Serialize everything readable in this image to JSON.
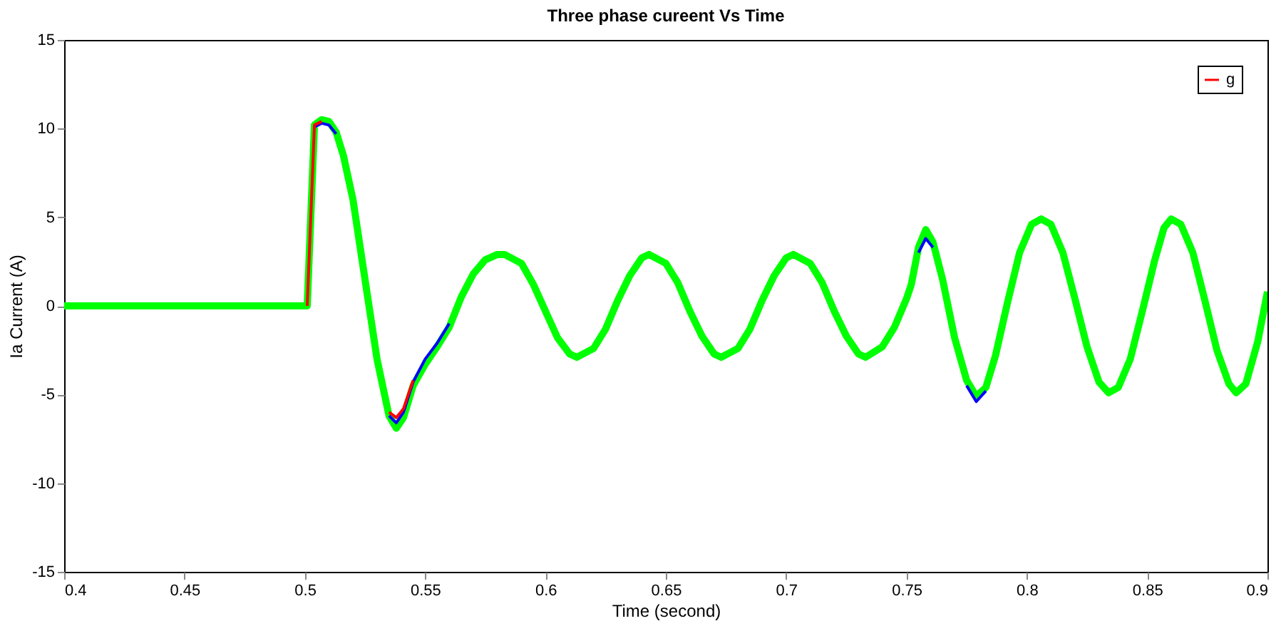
{
  "chart_data": {
    "type": "line",
    "title": "Three phase cureent Vs Time",
    "xlabel": "Time (second)",
    "ylabel": "Ia Current (A)",
    "x": [
      0.4,
      0.5,
      0.501,
      0.504,
      0.507,
      0.51,
      0.513,
      0.516,
      0.52,
      0.525,
      0.53,
      0.535,
      0.538,
      0.541,
      0.545,
      0.55,
      0.555,
      0.56,
      0.565,
      0.57,
      0.575,
      0.58,
      0.583,
      0.59,
      0.595,
      0.6,
      0.605,
      0.61,
      0.613,
      0.62,
      0.625,
      0.63,
      0.635,
      0.64,
      0.643,
      0.65,
      0.655,
      0.66,
      0.665,
      0.67,
      0.673,
      0.68,
      0.685,
      0.69,
      0.695,
      0.7,
      0.703,
      0.71,
      0.715,
      0.72,
      0.725,
      0.73,
      0.733,
      0.74,
      0.745,
      0.75,
      0.752,
      0.755,
      0.758,
      0.761,
      0.765,
      0.77,
      0.775,
      0.779,
      0.783,
      0.787,
      0.792,
      0.797,
      0.802,
      0.806,
      0.81,
      0.815,
      0.82,
      0.825,
      0.83,
      0.834,
      0.838,
      0.843,
      0.848,
      0.853,
      0.857,
      0.86,
      0.864,
      0.869,
      0.874,
      0.879,
      0.884,
      0.887,
      0.891,
      0.896,
      0.9
    ],
    "series": [
      {
        "name": "g",
        "color": "#ff0000",
        "values": [
          null,
          null,
          0,
          10.2,
          10.4,
          null,
          null,
          null,
          null,
          null,
          null,
          -6.0,
          -6.3,
          -5.8,
          -4.2,
          null,
          null,
          null,
          null,
          null,
          null,
          null,
          null,
          null,
          null,
          null,
          null,
          null,
          null,
          null,
          null,
          null,
          null,
          null,
          null,
          null,
          null,
          null,
          null,
          null,
          null,
          null,
          null,
          null,
          null,
          null,
          null,
          null,
          null,
          null,
          null,
          null,
          null,
          null,
          null,
          null,
          null,
          null,
          null,
          null,
          null,
          null,
          null,
          null,
          null,
          null,
          null,
          null,
          null,
          null,
          null,
          null,
          null,
          null,
          null,
          null,
          null,
          null,
          null,
          null,
          null,
          null,
          null,
          null,
          null,
          null,
          null,
          null,
          null,
          null,
          null
        ]
      },
      {
        "color": "#0000ff",
        "values": [
          null,
          null,
          null,
          10.1,
          10.3,
          10.2,
          9.7,
          null,
          null,
          null,
          null,
          -6.2,
          -6.6,
          -6.0,
          -4.3,
          -3.0,
          -2.1,
          -1.0,
          null,
          null,
          null,
          null,
          null,
          null,
          null,
          null,
          null,
          null,
          null,
          null,
          null,
          null,
          null,
          null,
          null,
          null,
          null,
          null,
          null,
          null,
          null,
          null,
          null,
          null,
          null,
          null,
          null,
          null,
          null,
          null,
          null,
          null,
          null,
          null,
          null,
          null,
          null,
          3.0,
          3.8,
          3.3,
          null,
          null,
          -4.5,
          -5.4,
          -4.8,
          null,
          null,
          null,
          null,
          null,
          null,
          null,
          null,
          null,
          null,
          null,
          null,
          null,
          null,
          null,
          null,
          null,
          null,
          null,
          null,
          null,
          null,
          null,
          null,
          null,
          null
        ]
      },
      {
        "color": "#00ff00",
        "values": [
          0,
          0,
          0,
          10.2,
          10.5,
          10.4,
          9.8,
          8.5,
          6,
          1.5,
          -3,
          -6.2,
          -6.9,
          -6.3,
          -4.5,
          -3.3,
          -2.3,
          -1.2,
          0.5,
          1.8,
          2.6,
          2.9,
          2.9,
          2.4,
          1.2,
          -0.3,
          -1.8,
          -2.7,
          -2.9,
          -2.4,
          -1.3,
          0.3,
          1.7,
          2.7,
          2.9,
          2.4,
          1.3,
          -0.3,
          -1.7,
          -2.7,
          -2.9,
          -2.4,
          -1.3,
          0.3,
          1.7,
          2.7,
          2.9,
          2.4,
          1.3,
          -0.3,
          -1.7,
          -2.7,
          -2.9,
          -2.3,
          -1.2,
          0.4,
          1.2,
          3.3,
          4.3,
          3.6,
          1.5,
          -1.8,
          -4.2,
          -5.1,
          -4.6,
          -2.8,
          0.2,
          3,
          4.6,
          4.9,
          4.6,
          3,
          0.4,
          -2.3,
          -4.3,
          -4.9,
          -4.6,
          -3,
          -0.3,
          2.5,
          4.4,
          4.9,
          4.6,
          3,
          0.3,
          -2.5,
          -4.4,
          -4.9,
          -4.4,
          -2,
          0.8
        ]
      }
    ],
    "xlim": [
      0.4,
      0.9
    ],
    "xticks": [
      0.4,
      0.45,
      0.5,
      0.55,
      0.6,
      0.65,
      0.7,
      0.75,
      0.8,
      0.85,
      0.9
    ],
    "ylim": [
      -15,
      15
    ],
    "yticks": [
      -15,
      -10,
      -5,
      0,
      5,
      10,
      15
    ],
    "legend": "top right",
    "grid": false,
    "line_style": "solid",
    "marker": "none"
  }
}
